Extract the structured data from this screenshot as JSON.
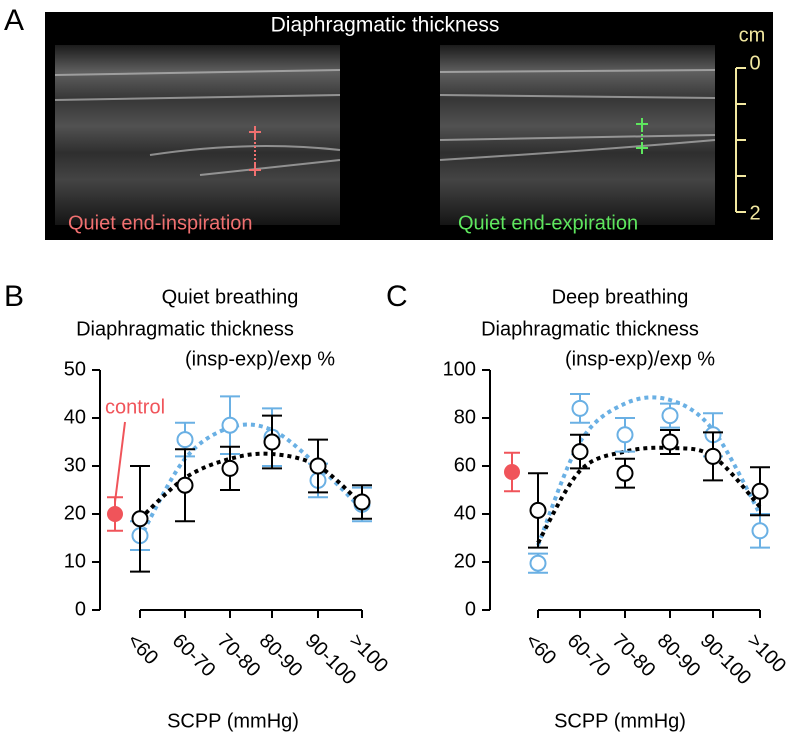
{
  "panel_a": {
    "label": "A",
    "title": "Diaphragmatic thickness",
    "unit": "cm",
    "scale_labels": [
      "0",
      "2"
    ],
    "left_caption": "Quiet end-inspiration",
    "right_caption": "Quiet end-expiration"
  },
  "chart_data": [
    {
      "type": "errorbar",
      "label": "B",
      "title": "Quiet breathing",
      "ylabel": [
        "Diaphragmatic thickness",
        "(insp-exp)/exp %"
      ],
      "xlabel": "SCPP (mmHg)",
      "categories": [
        "<60",
        "60-70",
        "70-80",
        "80-90",
        "90-100",
        ">100"
      ],
      "ylim": [
        0,
        50
      ],
      "yticks": [
        0,
        10,
        20,
        30,
        40,
        50
      ],
      "control": {
        "label": "control",
        "value": 20,
        "error": 3.5,
        "color": "#f0545a"
      },
      "series": [
        {
          "color": "#6ab0e4",
          "values": [
            15.5,
            35.5,
            38.5,
            36,
            27,
            22
          ],
          "errors": [
            3,
            3.5,
            6,
            6,
            3.5,
            3.5
          ],
          "fit": [
            15,
            31.5,
            38,
            37.5,
            30,
            21
          ]
        },
        {
          "color": "#000000",
          "values": [
            19,
            26,
            29.5,
            35,
            30,
            22.5
          ],
          "errors": [
            11,
            7.5,
            4.5,
            5.5,
            5.5,
            3.5
          ],
          "fit": [
            19,
            27.5,
            31.5,
            32.5,
            30,
            22
          ]
        }
      ]
    },
    {
      "type": "errorbar",
      "label": "C",
      "title": "Deep breathing",
      "ylabel": [
        "Diaphragmatic thickness",
        "(insp-exp)/exp %"
      ],
      "xlabel": "SCPP (mmHg)",
      "categories": [
        "<60",
        "60-70",
        "70-80",
        "80-90",
        "90-100",
        ">100"
      ],
      "ylim": [
        0,
        100
      ],
      "yticks": [
        0,
        20,
        40,
        60,
        80,
        100
      ],
      "control": {
        "value": 57.5,
        "error": 8,
        "color": "#f0545a"
      },
      "series": [
        {
          "color": "#6ab0e4",
          "values": [
            19.5,
            84,
            73,
            81,
            73,
            33
          ],
          "errors": [
            4,
            6,
            7,
            5,
            9,
            7
          ],
          "fit": [
            27,
            70,
            86,
            87.5,
            75,
            40
          ]
        },
        {
          "color": "#000000",
          "values": [
            41.5,
            66,
            57,
            70,
            64,
            49.5
          ],
          "errors": [
            15.5,
            7,
            6,
            5,
            10,
            10
          ],
          "fit": [
            28,
            58,
            66,
            67.5,
            64,
            43
          ]
        }
      ]
    }
  ]
}
